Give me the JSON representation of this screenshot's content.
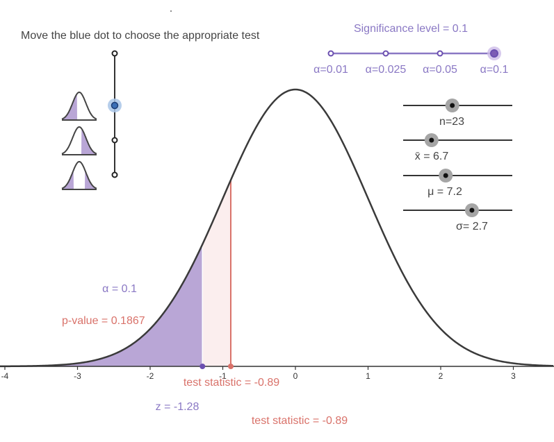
{
  "instructions": "Move the blue dot to choose the appropriate test",
  "significance": {
    "title": "Significance level = 0.1",
    "options": [
      "α=0.01",
      "α=0.025",
      "α=0.05",
      "α=0.1"
    ],
    "selected_index": 3,
    "color": "#7c5cb5"
  },
  "test_type": {
    "options": [
      "left-tailed",
      "right-tailed",
      "two-tailed"
    ],
    "selected_index": 0,
    "icon_names": [
      "left-tail-curve-icon",
      "right-tail-curve-icon",
      "two-tail-curve-icon"
    ]
  },
  "sliders": [
    {
      "id": "n",
      "label": "n=23",
      "fraction": 0.45
    },
    {
      "id": "xbar",
      "label": "x̄ = 6.7",
      "fraction": 0.26
    },
    {
      "id": "mu",
      "label": "μ = 7.2",
      "fraction": 0.39
    },
    {
      "id": "sigma",
      "label": "σ= 2.7",
      "fraction": 0.63
    }
  ],
  "labels": {
    "alpha": "α = 0.1",
    "p_value": "p-value = 0.1867",
    "test_statistic_axis": "test statistic = -0.89",
    "z": "z = -1.28",
    "test_statistic_bottom": "test statistic = -0.89"
  },
  "chart_data": {
    "type": "area",
    "distribution": "standard normal",
    "xlim": [
      -4.0,
      3.6
    ],
    "x_ticks": [
      -4,
      -3,
      -2,
      -1,
      0,
      1,
      2,
      3
    ],
    "x_tick_labels": [
      "-4",
      "-3",
      "-2",
      "-1",
      "0",
      "1",
      "2",
      "3"
    ],
    "critical_z": -1.28,
    "test_statistic": -0.89,
    "alpha": 0.1,
    "p_value": 0.1867
  },
  "colors": {
    "alpha_region": "#b9a6d6",
    "pvalue_region": "#fbeeee",
    "test_stat": "#d9726a",
    "critical": "#6b4fb0",
    "curve": "#3a3a3a",
    "alpha_text": "#8a78c4",
    "selected_dot": "#3b6fb6"
  }
}
